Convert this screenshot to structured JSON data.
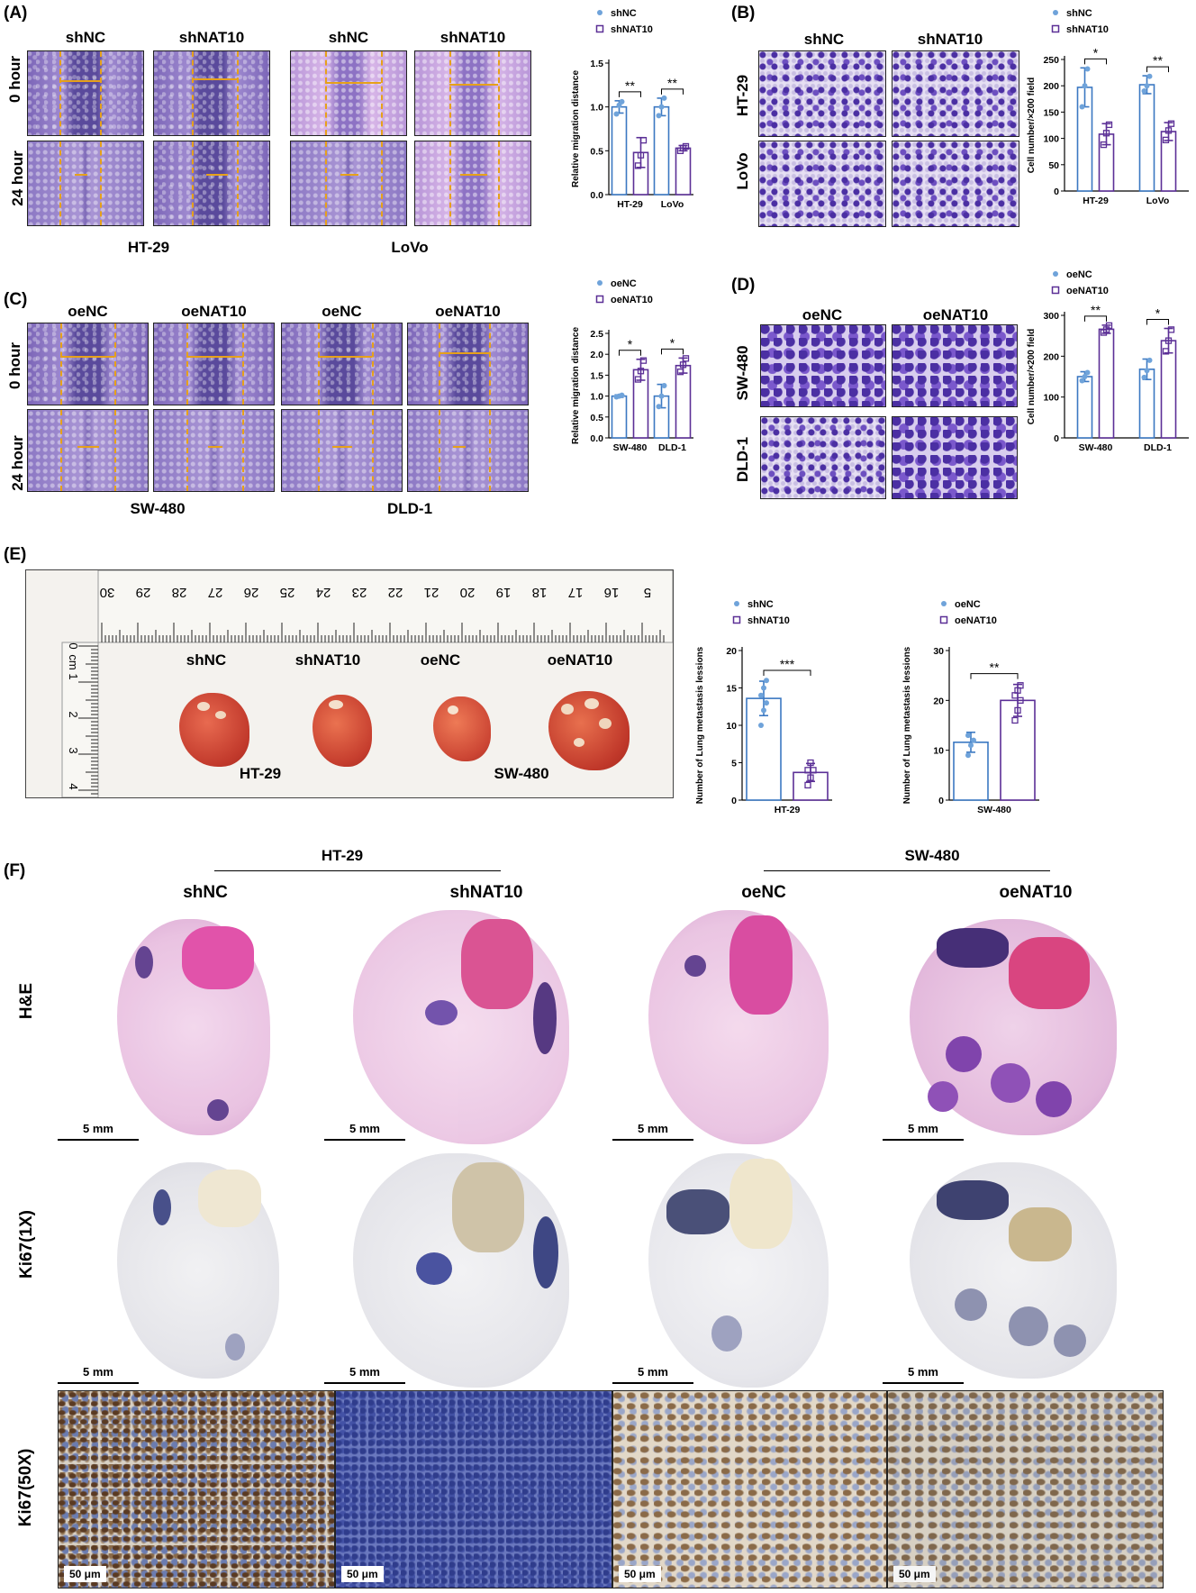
{
  "panels": {
    "A": {
      "label": "(A)",
      "cols": [
        "shNC",
        "shNAT10",
        "shNC",
        "shNAT10"
      ],
      "rows": [
        "0 hour",
        "24 hour"
      ],
      "cell_lines": [
        "HT-29",
        "LoVo"
      ]
    },
    "B": {
      "label": "(B)",
      "cols": [
        "shNC",
        "shNAT10"
      ],
      "rows": [
        "HT-29",
        "LoVo"
      ]
    },
    "C": {
      "label": "(C)",
      "cols": [
        "oeNC",
        "oeNAT10",
        "oeNC",
        "oeNAT10"
      ],
      "rows": [
        "0 hour",
        "24 hour"
      ],
      "cell_lines": [
        "SW-480",
        "DLD-1"
      ]
    },
    "D": {
      "label": "(D)",
      "cols": [
        "oeNC",
        "oeNAT10"
      ],
      "rows": [
        "SW-480",
        "DLD-1"
      ]
    },
    "E": {
      "label": "(E)",
      "ruler_numbers": [
        "30",
        "29",
        "28",
        "27",
        "26",
        "25",
        "24",
        "23",
        "22",
        "21",
        "20",
        "19",
        "18",
        "17",
        "16",
        "5"
      ],
      "ruler_left": [
        "0",
        "cm",
        "1",
        "2",
        "3",
        "4"
      ],
      "groups": [
        "shNC",
        "shNAT10",
        "oeNC",
        "oeNAT10"
      ],
      "cell_lines": [
        "HT-29",
        "SW-480"
      ]
    },
    "F": {
      "label": "(F)",
      "group_headers": [
        "HT-29",
        "SW-480"
      ],
      "cols": [
        "shNC",
        "shNAT10",
        "oeNC",
        "oeNAT10"
      ],
      "rows": [
        "H&E",
        "Ki67(1X)",
        "Ki67(50X)"
      ],
      "scale_mm": "5 mm",
      "scale_um": "50 μm"
    }
  },
  "chart_data": [
    {
      "id": "A",
      "type": "bar",
      "categories": [
        "HT-29",
        "LoVo"
      ],
      "ylabel": "Relative migration distance",
      "ylim": [
        0,
        1.5
      ],
      "yticks": [
        "0.0",
        "0.5",
        "1.0",
        "1.5"
      ],
      "series": [
        {
          "name": "shNC",
          "values": [
            1.0,
            1.0
          ],
          "errors": [
            0.07,
            0.1
          ],
          "points": [
            [
              0.92,
              1.02,
              1.06
            ],
            [
              0.9,
              1.0,
              1.1
            ]
          ]
        },
        {
          "name": "shNAT10",
          "values": [
            0.48,
            0.53
          ],
          "errors": [
            0.17,
            0.03
          ],
          "points": [
            [
              0.33,
              0.45,
              0.62
            ],
            [
              0.5,
              0.53,
              0.55
            ]
          ]
        }
      ],
      "significance": [
        "**",
        "**"
      ],
      "legend_position": "top"
    },
    {
      "id": "B",
      "type": "bar",
      "categories": [
        "HT-29",
        "LoVo"
      ],
      "ylabel": "Cell number/×200 field",
      "ylim": [
        0,
        250
      ],
      "yticks": [
        "0",
        "50",
        "100",
        "150",
        "200",
        "250"
      ],
      "series": [
        {
          "name": "shNC",
          "values": [
            197,
            202
          ],
          "errors": [
            37,
            17
          ],
          "points": [
            [
              160,
              200,
              232
            ],
            [
              190,
              200,
              218
            ]
          ]
        },
        {
          "name": "shNAT10",
          "values": [
            108,
            113
          ],
          "errors": [
            20,
            17
          ],
          "points": [
            [
              88,
              110,
              126
            ],
            [
              97,
              115,
              128
            ]
          ]
        }
      ],
      "significance": [
        "*",
        "**"
      ],
      "legend_position": "top"
    },
    {
      "id": "C",
      "type": "bar",
      "categories": [
        "SW-480",
        "DLD-1"
      ],
      "ylabel": "Relative migration distance",
      "ylim": [
        0,
        2.5
      ],
      "yticks": [
        "0.0",
        "0.5",
        "1.0",
        "1.5",
        "2.0",
        "2.5"
      ],
      "series": [
        {
          "name": "oeNC",
          "values": [
            1.0,
            1.0
          ],
          "errors": [
            0.03,
            0.28
          ],
          "points": [
            [
              0.98,
              1.0,
              1.02
            ],
            [
              0.75,
              1.0,
              1.25
            ]
          ]
        },
        {
          "name": "oeNAT10",
          "values": [
            1.63,
            1.73
          ],
          "errors": [
            0.25,
            0.18
          ],
          "points": [
            [
              1.4,
              1.6,
              1.85
            ],
            [
              1.58,
              1.75,
              1.9
            ]
          ]
        }
      ],
      "significance": [
        "*",
        "*"
      ],
      "legend_position": "top"
    },
    {
      "id": "D",
      "type": "bar",
      "categories": [
        "SW-480",
        "DLD-1"
      ],
      "ylabel": "Cell number/×200 field",
      "ylim": [
        0,
        300
      ],
      "yticks": [
        "0",
        "100",
        "200",
        "300"
      ],
      "series": [
        {
          "name": "oeNC",
          "values": [
            150,
            168
          ],
          "errors": [
            12,
            25
          ],
          "points": [
            [
              140,
              150,
              160
            ],
            [
              148,
              165,
              190
            ]
          ]
        },
        {
          "name": "oeNAT10",
          "values": [
            266,
            238
          ],
          "errors": [
            10,
            30
          ],
          "points": [
            [
              258,
              265,
              275
            ],
            [
              212,
              238,
              265
            ]
          ]
        }
      ],
      "significance": [
        "**",
        "*"
      ],
      "legend_position": "top"
    },
    {
      "id": "E1",
      "type": "bar",
      "categories": [
        "HT-29"
      ],
      "ylabel": "Number of Lung metastasis lessions",
      "ylim": [
        0,
        20
      ],
      "yticks": [
        "0",
        "5",
        "10",
        "15",
        "20"
      ],
      "series": [
        {
          "name": "shNC",
          "values": [
            13.6
          ],
          "errors": [
            2.3
          ],
          "points": [
            [
              10,
              12,
              13,
              14,
              15,
              16
            ]
          ]
        },
        {
          "name": "shNAT10",
          "values": [
            3.7
          ],
          "errors": [
            1.2
          ],
          "points": [
            [
              2,
              3,
              4,
              4,
              5
            ]
          ]
        }
      ],
      "significance": [
        "***"
      ],
      "legend_position": "top"
    },
    {
      "id": "E2",
      "type": "bar",
      "categories": [
        "SW-480"
      ],
      "ylabel": "Number of Lung metastasis lessions",
      "ylim": [
        0,
        30
      ],
      "yticks": [
        "0",
        "10",
        "20",
        "30"
      ],
      "series": [
        {
          "name": "oeNC",
          "values": [
            11.6
          ],
          "errors": [
            2.0
          ],
          "points": [
            [
              9,
              11,
              12,
              13
            ]
          ]
        },
        {
          "name": "oeNAT10",
          "values": [
            20
          ],
          "errors": [
            3.2
          ],
          "points": [
            [
              16,
              18,
              20,
              21,
              22,
              23
            ]
          ]
        }
      ],
      "significance": [
        "**"
      ],
      "legend_position": "top"
    }
  ],
  "colors": {
    "series1": "#3b78c2",
    "series1_point": "#6fa3da",
    "series2": "#5b2f96",
    "series2_point": "#8a64c4",
    "scar_line": "#e6a11a"
  }
}
